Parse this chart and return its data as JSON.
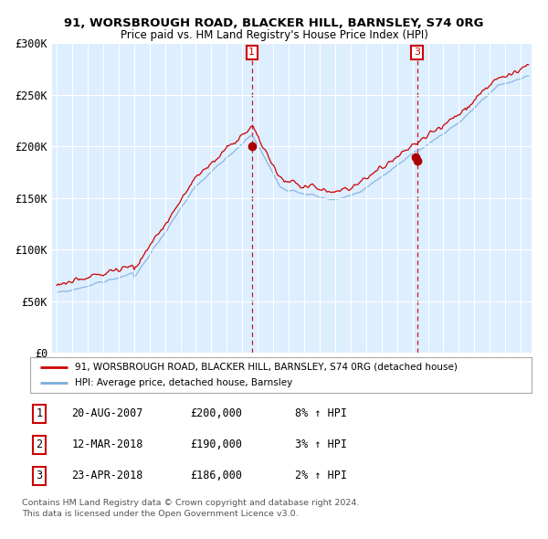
{
  "title1": "91, WORSBROUGH ROAD, BLACKER HILL, BARNSLEY, S74 0RG",
  "title2": "Price paid vs. HM Land Registry's House Price Index (HPI)",
  "legend_line1": "91, WORSBROUGH ROAD, BLACKER HILL, BARNSLEY, S74 0RG (detached house)",
  "legend_line2": "HPI: Average price, detached house, Barnsley",
  "transactions": [
    {
      "num": 1,
      "year": 2007.62,
      "price": 200000,
      "date": "20-AUG-2007",
      "hpi_pct": "8%"
    },
    {
      "num": 2,
      "year": 2018.19,
      "price": 190000,
      "date": "12-MAR-2018",
      "hpi_pct": "3%"
    },
    {
      "num": 3,
      "year": 2018.3,
      "price": 186000,
      "date": "23-APR-2018",
      "hpi_pct": "2%"
    }
  ],
  "footer1": "Contains HM Land Registry data © Crown copyright and database right 2024.",
  "footer2": "This data is licensed under the Open Government Licence v3.0.",
  "ylim": [
    0,
    300000
  ],
  "yticks": [
    0,
    50000,
    100000,
    150000,
    200000,
    250000,
    300000
  ],
  "ytick_labels": [
    "£0",
    "£50K",
    "£100K",
    "£150K",
    "£200K",
    "£250K",
    "£300K"
  ],
  "red_color": "#cc0000",
  "blue_color": "#7aadda",
  "dot_color": "#aa0000",
  "background_color": "#ddeeff",
  "table_data": [
    [
      1,
      "20-AUG-2007",
      "£200,000",
      "8% ↑ HPI"
    ],
    [
      2,
      "12-MAR-2018",
      "£190,000",
      "3% ↑ HPI"
    ],
    [
      3,
      "23-APR-2018",
      "£186,000",
      "2% ↑ HPI"
    ]
  ]
}
